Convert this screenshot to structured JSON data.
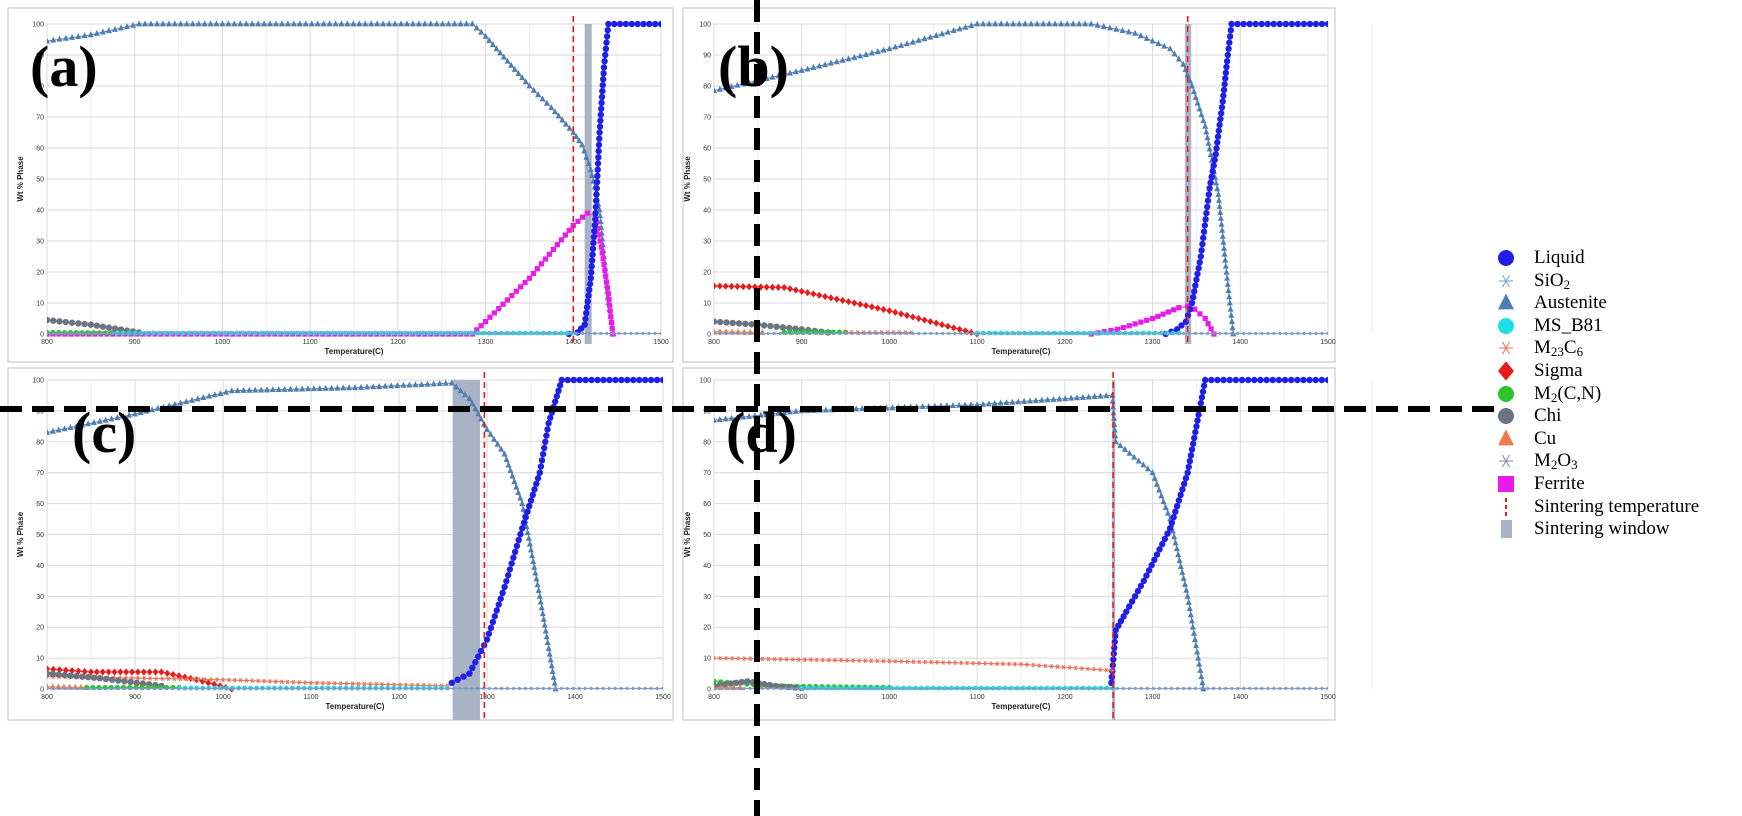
{
  "figure": {
    "layout": "2x2 panels",
    "colors": {
      "Liquid": "#1f1fe6",
      "SiO2": "#7a9cc8",
      "Austenite": "#4f7fb0",
      "MS_B81": "#1fe0e6",
      "M23C6": "#e8705a",
      "Sigma": "#e81b1b",
      "M2(C,N)": "#2bc42b",
      "Chi": "#6b7480",
      "Cu": "#f07a4a",
      "M2O3": "#7a8aa0",
      "Ferrite": "#e81be8",
      "Sintering temperature": "#e81b1b",
      "Sintering window": "#a9b3c6",
      "divider": "#000000",
      "grid": "#d9d9d9"
    }
  },
  "legend": [
    {
      "key": "Liquid",
      "text": "Liquid",
      "sub": "",
      "after": "",
      "marker": "circle"
    },
    {
      "key": "SiO2",
      "text": "SiO",
      "sub": "2",
      "after": "",
      "marker": "star"
    },
    {
      "key": "Austenite",
      "text": "Austenite",
      "sub": "",
      "after": "",
      "marker": "triangle"
    },
    {
      "key": "MS_B81",
      "text": "MS_B81",
      "sub": "",
      "after": "",
      "marker": "circle"
    },
    {
      "key": "M23C6",
      "text": "M",
      "sub": "23",
      "after": "C",
      "sub2": "6",
      "marker": "star"
    },
    {
      "key": "Sigma",
      "text": "Sigma",
      "sub": "",
      "after": "",
      "marker": "diamond"
    },
    {
      "key": "M2(C,N)",
      "text": "M",
      "sub": "2",
      "after": "(C,N)",
      "marker": "circle"
    },
    {
      "key": "Chi",
      "text": "Chi",
      "sub": "",
      "after": "",
      "marker": "circle"
    },
    {
      "key": "Cu",
      "text": "Cu",
      "sub": "",
      "after": "",
      "marker": "triangle"
    },
    {
      "key": "M2O3",
      "text": "M",
      "sub": "2",
      "after": "O",
      "sub2": "3",
      "marker": "star"
    },
    {
      "key": "Ferrite",
      "text": "Ferrite",
      "sub": "",
      "after": "",
      "marker": "square"
    },
    {
      "key": "Sintering temperature",
      "text": "Sintering temperature",
      "sub": "",
      "after": "",
      "marker": "dash"
    },
    {
      "key": "Sintering window",
      "text": "Sintering window",
      "sub": "",
      "after": "",
      "marker": "bar"
    }
  ],
  "chart_data": [
    {
      "panel": "(a)",
      "type": "line",
      "xlabel": "Temperature(C)",
      "ylabel": "Wt % Phase",
      "xlim": [
        800,
        1500
      ],
      "ylim": [
        0,
        100
      ],
      "xticks": [
        800,
        900,
        1000,
        1100,
        1200,
        1300,
        1400,
        1500
      ],
      "yticks": [
        0,
        10,
        20,
        30,
        40,
        50,
        60,
        70,
        80,
        90,
        100
      ],
      "sintering_temperature": 1400,
      "sintering_window": [
        1413,
        1421
      ],
      "series": [
        {
          "name": "Austenite",
          "points": [
            [
              800,
              94.5
            ],
            [
              850,
              96.5
            ],
            [
              905,
              100
            ],
            [
              1285,
              100
            ],
            [
              1300,
              96
            ],
            [
              1325,
              88
            ],
            [
              1350,
              80
            ],
            [
              1375,
              73
            ],
            [
              1400,
              65
            ],
            [
              1410,
              61
            ],
            [
              1420,
              53
            ],
            [
              1430,
              40
            ],
            [
              1440,
              10
            ],
            [
              1446,
              0
            ]
          ]
        },
        {
          "name": "Ferrite",
          "points": [
            [
              800,
              0
            ],
            [
              1285,
              0
            ],
            [
              1300,
              4
            ],
            [
              1350,
              18
            ],
            [
              1400,
              35
            ],
            [
              1416,
              39
            ],
            [
              1425,
              38
            ],
            [
              1432,
              28
            ],
            [
              1440,
              13
            ],
            [
              1445,
              0
            ]
          ]
        },
        {
          "name": "Liquid",
          "points": [
            [
              1395,
              0
            ],
            [
              1405,
              0.5
            ],
            [
              1413,
              3
            ],
            [
              1420,
              18
            ],
            [
              1425,
              37
            ],
            [
              1430,
              65
            ],
            [
              1435,
              86
            ],
            [
              1440,
              100
            ],
            [
              1500,
              100
            ]
          ]
        },
        {
          "name": "Chi",
          "points": [
            [
              800,
              4.5
            ],
            [
              850,
              3
            ],
            [
              905,
              0.5
            ]
          ]
        },
        {
          "name": "M2(C,N)",
          "points": [
            [
              800,
              0.5
            ],
            [
              900,
              0.3
            ]
          ]
        },
        {
          "name": "MS_B81",
          "points": [
            [
              880,
              0.3
            ],
            [
              1400,
              0.3
            ]
          ]
        },
        {
          "name": "SiO2",
          "points": [
            [
              800,
              0.2
            ],
            [
              1500,
              0.2
            ]
          ]
        }
      ]
    },
    {
      "panel": "(b)",
      "type": "line",
      "xlabel": "Temperature(C)",
      "ylabel": "Wt % Phase",
      "xlim": [
        800,
        1500
      ],
      "ylim": [
        0,
        100
      ],
      "xticks": [
        800,
        900,
        1000,
        1100,
        1200,
        1300,
        1400,
        1500
      ],
      "yticks": [
        0,
        10,
        20,
        30,
        40,
        50,
        60,
        70,
        80,
        90,
        100
      ],
      "sintering_temperature": 1340,
      "sintering_window": [
        1337,
        1344
      ],
      "series": [
        {
          "name": "Austenite",
          "points": [
            [
              800,
              78.5
            ],
            [
              900,
              85
            ],
            [
              1000,
              92
            ],
            [
              1100,
              100
            ],
            [
              1230,
              100
            ],
            [
              1280,
              97
            ],
            [
              1320,
              92
            ],
            [
              1335,
              87
            ],
            [
              1345,
              80
            ],
            [
              1360,
              67
            ],
            [
              1375,
              45
            ],
            [
              1385,
              18
            ],
            [
              1392,
              0
            ]
          ]
        },
        {
          "name": "Ferrite",
          "points": [
            [
              1230,
              0
            ],
            [
              1260,
              1.5
            ],
            [
              1300,
              5
            ],
            [
              1330,
              8.5
            ],
            [
              1340,
              9
            ],
            [
              1348,
              8
            ],
            [
              1360,
              5
            ],
            [
              1370,
              0
            ]
          ]
        },
        {
          "name": "Liquid",
          "points": [
            [
              1315,
              0
            ],
            [
              1328,
              1.5
            ],
            [
              1338,
              4
            ],
            [
              1345,
              10
            ],
            [
              1355,
              25
            ],
            [
              1365,
              47
            ],
            [
              1372,
              58
            ],
            [
              1380,
              75
            ],
            [
              1385,
              88
            ],
            [
              1390,
              100
            ],
            [
              1500,
              100
            ]
          ]
        },
        {
          "name": "Sigma",
          "points": [
            [
              800,
              15.5
            ],
            [
              880,
              15
            ],
            [
              1000,
              7.5
            ],
            [
              1100,
              0
            ]
          ]
        },
        {
          "name": "Chi",
          "points": [
            [
              800,
              4
            ],
            [
              850,
              3
            ],
            [
              900,
              1.5
            ],
            [
              930,
              0.5
            ]
          ]
        },
        {
          "name": "M2(C,N)",
          "points": [
            [
              880,
              0.6
            ],
            [
              950,
              0.6
            ]
          ]
        },
        {
          "name": "Cu",
          "points": [
            [
              800,
              0.7
            ],
            [
              855,
              0.5
            ]
          ]
        },
        {
          "name": "M23C6",
          "points": [
            [
              950,
              0.5
            ],
            [
              1025,
              0.5
            ]
          ]
        },
        {
          "name": "MS_B81",
          "points": [
            [
              1100,
              0.3
            ],
            [
              1330,
              0.3
            ]
          ]
        },
        {
          "name": "SiO2",
          "points": [
            [
              800,
              0.2
            ],
            [
              1500,
              0.2
            ]
          ]
        }
      ]
    },
    {
      "panel": "(c)",
      "type": "line",
      "xlabel": "Temperature(C)",
      "ylabel": "Wt % Phase",
      "xlim": [
        800,
        1500
      ],
      "ylim": [
        0,
        100
      ],
      "xticks": [
        800,
        900,
        1000,
        1100,
        1200,
        1300,
        1400,
        1500
      ],
      "yticks": [
        0,
        10,
        20,
        30,
        40,
        50,
        60,
        70,
        80,
        90,
        100
      ],
      "sintering_temperature": 1297,
      "sintering_window": [
        1261,
        1292
      ],
      "series": [
        {
          "name": "Austenite",
          "points": [
            [
              800,
              83
            ],
            [
              900,
              89
            ],
            [
              1010,
              96.5
            ],
            [
              1150,
              97.5
            ],
            [
              1260,
              99
            ],
            [
              1280,
              94
            ],
            [
              1290,
              89
            ],
            [
              1300,
              84
            ],
            [
              1320,
              76
            ],
            [
              1340,
              60
            ],
            [
              1360,
              30
            ],
            [
              1378,
              0
            ]
          ]
        },
        {
          "name": "Liquid",
          "points": [
            [
              1260,
              2
            ],
            [
              1280,
              5
            ],
            [
              1300,
              16
            ],
            [
              1320,
              33
            ],
            [
              1340,
              52
            ],
            [
              1360,
              70
            ],
            [
              1370,
              86
            ],
            [
              1385,
              100
            ],
            [
              1500,
              100
            ]
          ]
        },
        {
          "name": "Sigma",
          "points": [
            [
              800,
              6.5
            ],
            [
              850,
              5.5
            ],
            [
              930,
              5.5
            ],
            [
              970,
              3
            ],
            [
              1010,
              0
            ]
          ]
        },
        {
          "name": "M23C6",
          "points": [
            [
              800,
              4
            ],
            [
              1000,
              3
            ],
            [
              1100,
              2
            ],
            [
              1255,
              1
            ]
          ]
        },
        {
          "name": "Chi",
          "points": [
            [
              800,
              5
            ],
            [
              860,
              3.5
            ],
            [
              930,
              1
            ]
          ]
        },
        {
          "name": "Cu",
          "points": [
            [
              800,
              0.7
            ],
            [
              845,
              0.5
            ]
          ]
        },
        {
          "name": "M2(C,N)",
          "points": [
            [
              845,
              0.5
            ],
            [
              950,
              0.5
            ]
          ]
        },
        {
          "name": "MS_B81",
          "points": [
            [
              950,
              0.3
            ],
            [
              1255,
              0.3
            ]
          ]
        },
        {
          "name": "SiO2",
          "points": [
            [
              800,
              0.2
            ],
            [
              1500,
              0.2
            ]
          ]
        }
      ]
    },
    {
      "panel": "(d)",
      "type": "line",
      "xlabel": "Temperature(C)",
      "ylabel": "Wt % Phase",
      "xlim": [
        800,
        1500
      ],
      "ylim": [
        0,
        100
      ],
      "xticks": [
        800,
        900,
        1000,
        1100,
        1200,
        1300,
        1400,
        1500
      ],
      "yticks": [
        0,
        10,
        20,
        30,
        40,
        50,
        60,
        70,
        80,
        90,
        100
      ],
      "sintering_temperature": 1255,
      "sintering_window": [
        1254,
        1256
      ],
      "series": [
        {
          "name": "Austenite",
          "points": [
            [
              800,
              87
            ],
            [
              900,
              90
            ],
            [
              1100,
              92
            ],
            [
              1254,
              95
            ],
            [
              1258,
              80
            ],
            [
              1300,
              70
            ],
            [
              1320,
              55
            ],
            [
              1340,
              30
            ],
            [
              1352,
              10
            ],
            [
              1358,
              0
            ]
          ]
        },
        {
          "name": "Liquid",
          "points": [
            [
              1253,
              2
            ],
            [
              1258,
              19
            ],
            [
              1270,
              25
            ],
            [
              1290,
              35
            ],
            [
              1320,
              52
            ],
            [
              1340,
              70
            ],
            [
              1350,
              85
            ],
            [
              1360,
              100
            ],
            [
              1500,
              100
            ]
          ]
        },
        {
          "name": "M23C6",
          "points": [
            [
              800,
              10
            ],
            [
              1000,
              9
            ],
            [
              1150,
              8
            ],
            [
              1254,
              6
            ]
          ]
        },
        {
          "name": "M2(C,N)",
          "points": [
            [
              800,
              2.5
            ],
            [
              830,
              1.8
            ],
            [
              860,
              1
            ],
            [
              1000,
              0.5
            ]
          ]
        },
        {
          "name": "Chi",
          "points": [
            [
              800,
              1
            ],
            [
              838,
              2.5
            ],
            [
              870,
              1
            ],
            [
              900,
              0.3
            ]
          ]
        },
        {
          "name": "Cu",
          "points": [
            [
              800,
              0.4
            ],
            [
              830,
              0.4
            ]
          ]
        },
        {
          "name": "MS_B81",
          "points": [
            [
              900,
              0.3
            ],
            [
              1255,
              0.3
            ]
          ]
        },
        {
          "name": "SiO2",
          "points": [
            [
              800,
              0.2
            ],
            [
              1500,
              0.2
            ]
          ]
        }
      ]
    }
  ]
}
